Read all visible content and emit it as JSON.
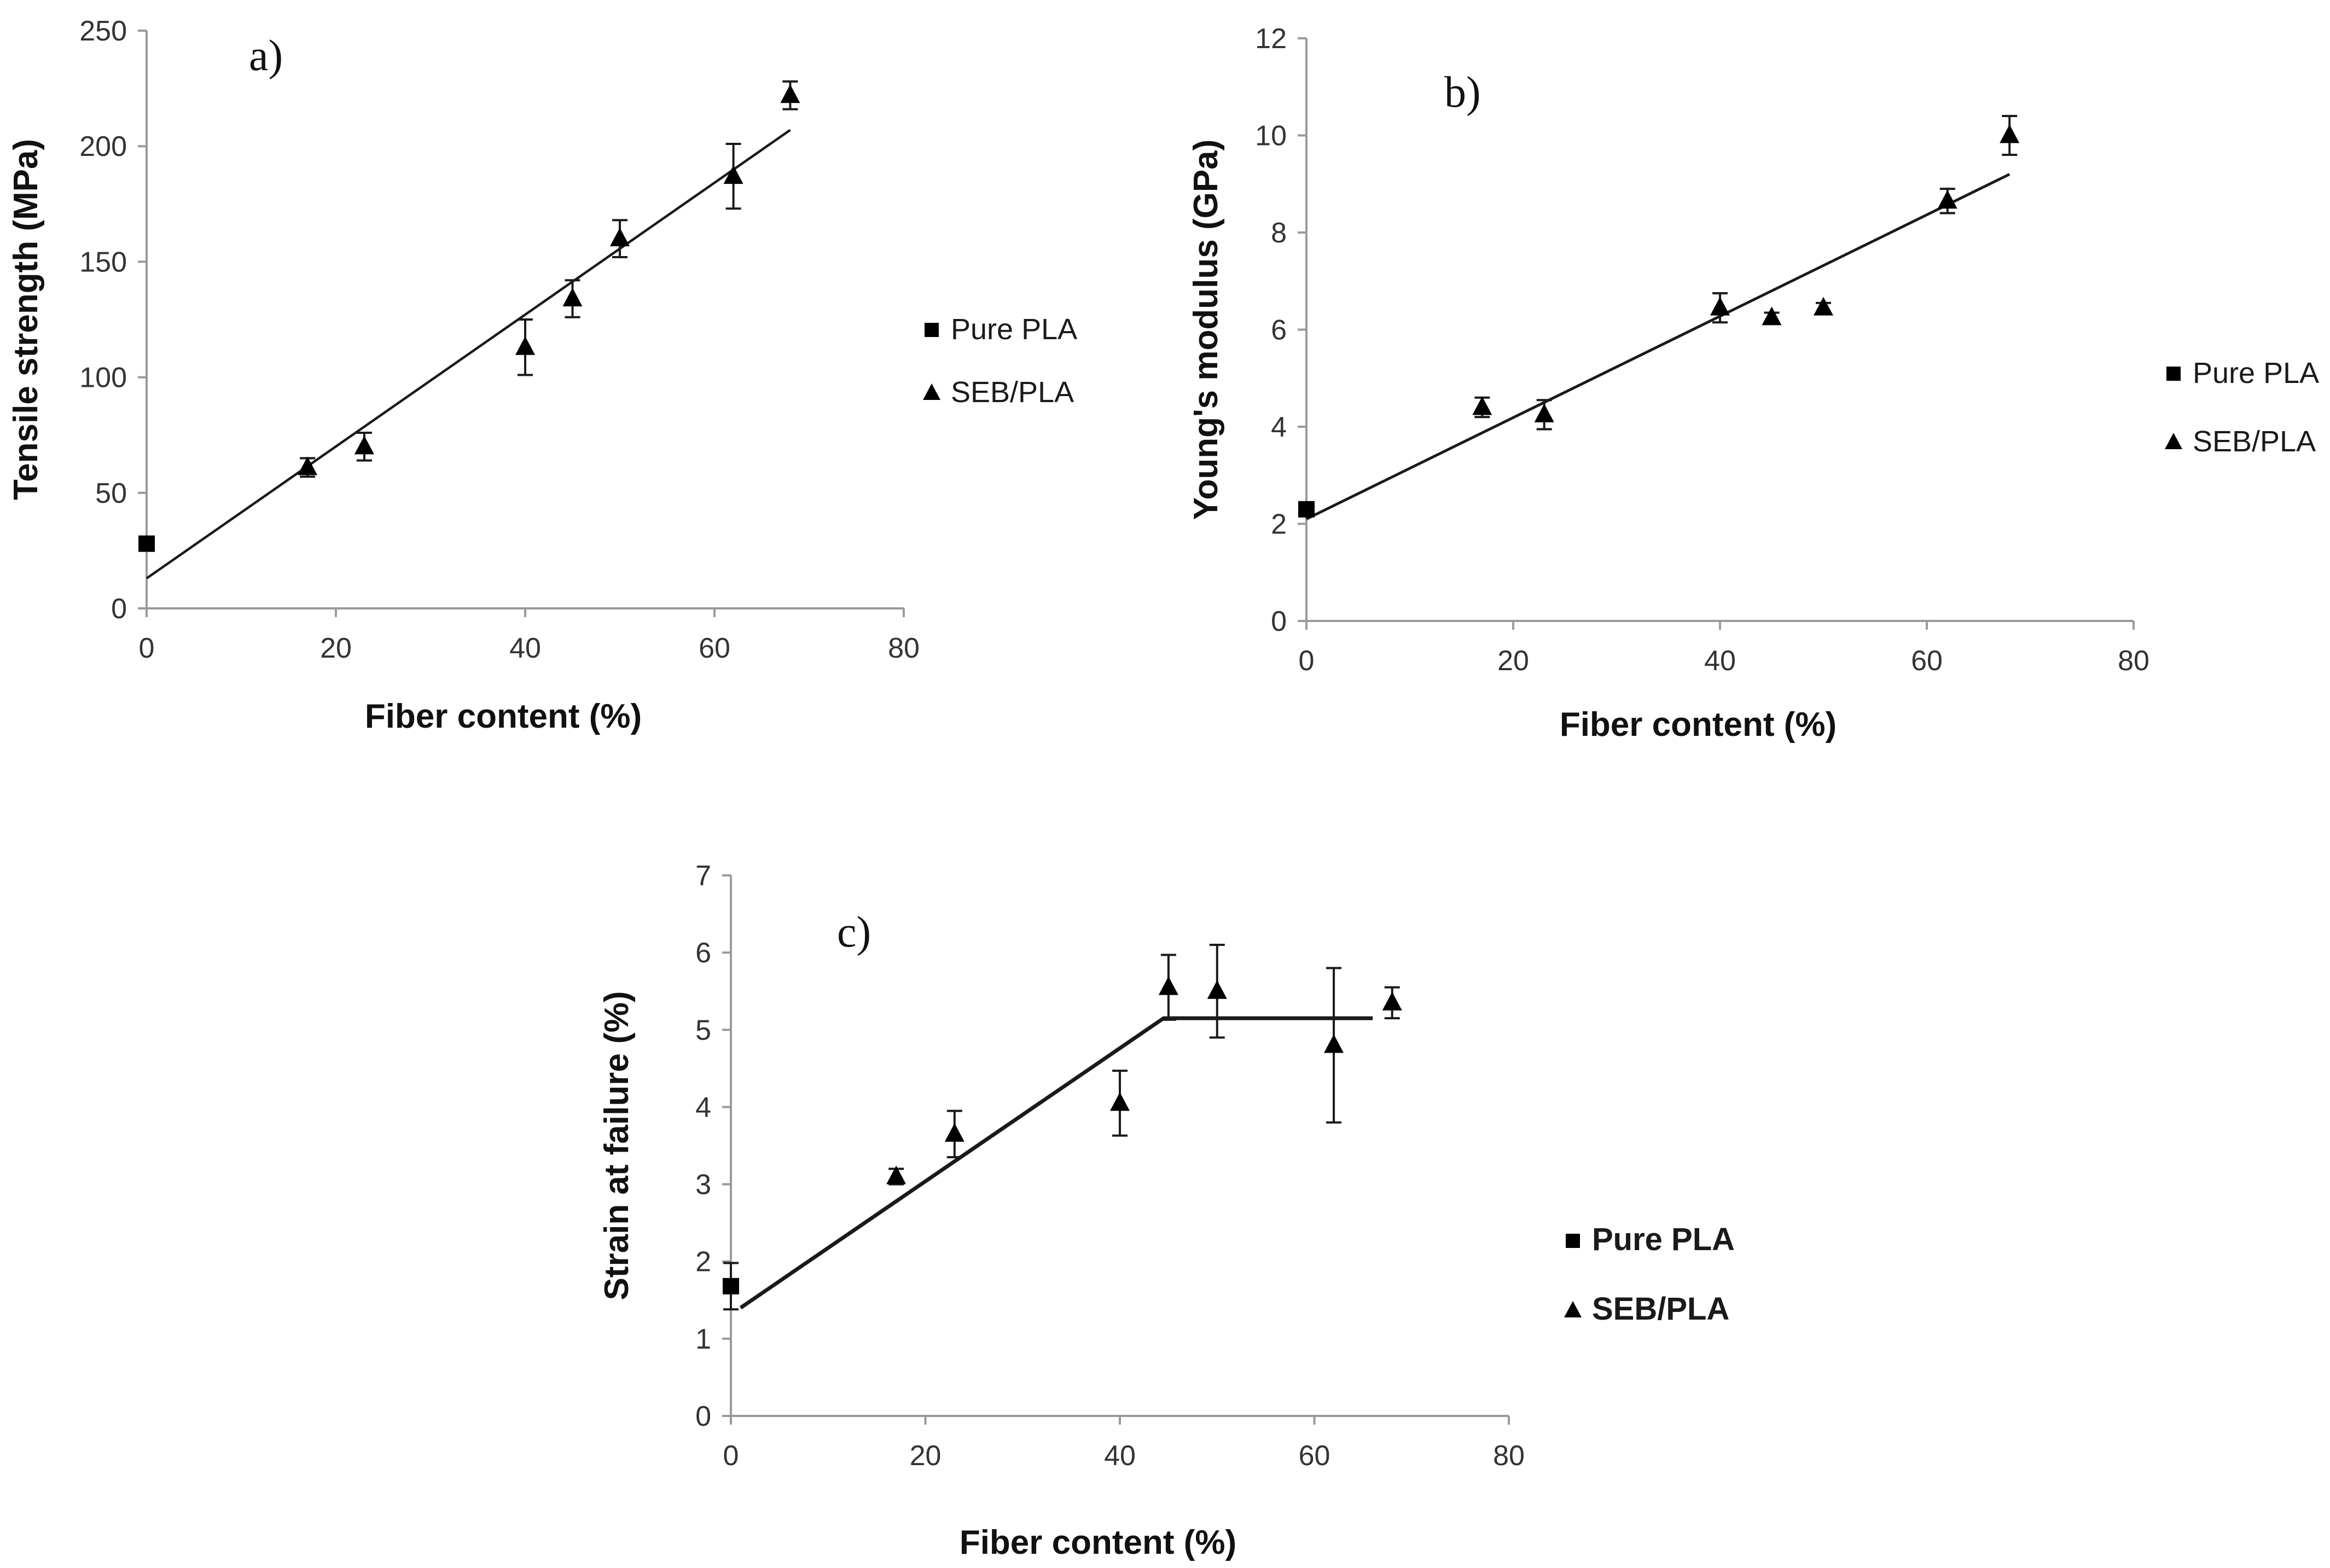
{
  "chart_data": [
    {
      "panel": "a)",
      "type": "scatter",
      "xlabel": "Fiber content (%)",
      "ylabel": "Tensile strength (MPa)",
      "xlim": [
        0,
        80
      ],
      "ylim": [
        0,
        250
      ],
      "xticks": [
        "0",
        "20",
        "40",
        "60",
        "80"
      ],
      "yticks": [
        "0",
        "50",
        "100",
        "150",
        "200",
        "250"
      ],
      "legend": [
        "Pure PLA",
        "SEB/PLA"
      ],
      "legend_position": "right",
      "series": [
        {
          "name": "Pure PLA",
          "marker": "square",
          "points": [
            {
              "x": 0,
              "y": 28,
              "err": 0
            }
          ]
        },
        {
          "name": "SEB/PLA",
          "marker": "triangle",
          "points": [
            {
              "x": 17,
              "y": 61,
              "err": 4
            },
            {
              "x": 23,
              "y": 70,
              "err": 6
            },
            {
              "x": 40,
              "y": 113,
              "err": 12
            },
            {
              "x": 45,
              "y": 134,
              "err": 8
            },
            {
              "x": 50,
              "y": 160,
              "err": 8
            },
            {
              "x": 62,
              "y": 187,
              "err": 14
            },
            {
              "x": 68,
              "y": 222,
              "err": 6
            }
          ]
        }
      ],
      "fit_line": [
        {
          "x": 0,
          "y": 13
        },
        {
          "x": 68,
          "y": 207
        }
      ]
    },
    {
      "panel": "b)",
      "type": "scatter",
      "xlabel": "Fiber content (%)",
      "ylabel": "Young's modulus (GPa)",
      "xlim": [
        0,
        80
      ],
      "ylim": [
        0,
        12
      ],
      "xticks": [
        "0",
        "20",
        "40",
        "60",
        "80"
      ],
      "yticks": [
        "0",
        "2",
        "4",
        "6",
        "8",
        "10",
        "12"
      ],
      "legend": [
        "Pure PLA",
        "SEB/PLA"
      ],
      "legend_position": "right",
      "series": [
        {
          "name": "Pure PLA",
          "marker": "square",
          "points": [
            {
              "x": 0,
              "y": 2.3,
              "err": 0
            }
          ]
        },
        {
          "name": "SEB/PLA",
          "marker": "triangle",
          "points": [
            {
              "x": 17,
              "y": 4.4,
              "err": 0.2
            },
            {
              "x": 23,
              "y": 4.25,
              "err": 0.3
            },
            {
              "x": 40,
              "y": 6.45,
              "err": 0.3
            },
            {
              "x": 45,
              "y": 6.25,
              "err": 0.1
            },
            {
              "x": 50,
              "y": 6.45,
              "err": 0.1
            },
            {
              "x": 62,
              "y": 8.65,
              "err": 0.25
            },
            {
              "x": 68,
              "y": 10,
              "err": 0.4
            }
          ]
        }
      ],
      "fit_line": [
        {
          "x": 0,
          "y": 2.1
        },
        {
          "x": 68,
          "y": 9.2
        }
      ]
    },
    {
      "panel": "c)",
      "type": "scatter",
      "xlabel": "Fiber content (%)",
      "ylabel": "Strain at failure (%)",
      "xlim": [
        0,
        80
      ],
      "ylim": [
        0,
        7
      ],
      "xticks": [
        "0",
        "20",
        "40",
        "60",
        "80"
      ],
      "yticks": [
        "0",
        "1",
        "2",
        "3",
        "4",
        "5",
        "6",
        "7"
      ],
      "legend": [
        "Pure PLA",
        "SEB/PLA"
      ],
      "legend_position": "right",
      "series": [
        {
          "name": "Pure PLA",
          "marker": "square",
          "points": [
            {
              "x": 0,
              "y": 1.68,
              "err": 0.3
            }
          ]
        },
        {
          "name": "SEB/PLA",
          "marker": "triangle",
          "points": [
            {
              "x": 17,
              "y": 3.1,
              "err": 0.1
            },
            {
              "x": 23,
              "y": 3.65,
              "err": 0.3
            },
            {
              "x": 40,
              "y": 4.05,
              "err": 0.42
            },
            {
              "x": 45,
              "y": 5.55,
              "err": 0.42
            },
            {
              "x": 50,
              "y": 5.5,
              "err": 0.6
            },
            {
              "x": 62,
              "y": 4.8,
              "err": 1.0
            },
            {
              "x": 68,
              "y": 5.35,
              "err": 0.2
            }
          ]
        }
      ],
      "fit_line": [
        {
          "x": 1,
          "y": 1.4
        },
        {
          "x": 44.5,
          "y": 5.15
        },
        {
          "x": 66,
          "y": 5.15
        }
      ]
    }
  ]
}
